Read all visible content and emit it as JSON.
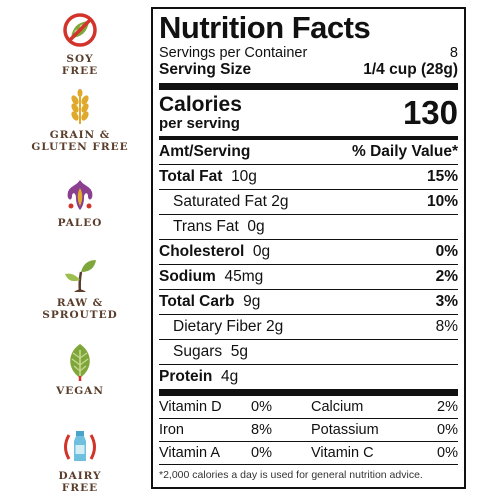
{
  "badges": [
    {
      "label_lines": [
        "SOY",
        "FREE"
      ],
      "icon": "soy-free-icon"
    },
    {
      "label_lines": [
        "GRAIN &",
        "GLUTEN FREE"
      ],
      "icon": "grain-gluten-free-icon"
    },
    {
      "label_lines": [
        "PALEO"
      ],
      "icon": "paleo-icon"
    },
    {
      "label_lines": [
        "RAW &",
        "SPROUTED"
      ],
      "icon": "sprout-icon"
    },
    {
      "label_lines": [
        "VEGAN"
      ],
      "icon": "leaf-icon"
    },
    {
      "label_lines": [
        "DAIRY",
        "FREE"
      ],
      "icon": "milk-bottle-icon"
    }
  ],
  "colors": {
    "badge_label": "#5a3d2b",
    "red": "#d2332b",
    "gold": "#e0a92c",
    "green": "#7fa63a",
    "purple": "#8a3f8f"
  },
  "facts": {
    "title": "Nutrition Facts",
    "servings_label": "Servings per Container",
    "servings_value": "8",
    "serving_size_label": "Serving Size",
    "serving_size_value": "1/4 cup (28g)",
    "calories_label": "Calories",
    "calories_sub": "per serving",
    "calories_value": "130",
    "amt_header": "Amt/Serving",
    "dv_header": "% Daily Value*",
    "nutrients": [
      {
        "name": "Total Fat",
        "amount": "10g",
        "dv": "15%"
      },
      {
        "name": "Saturated Fat",
        "amount": "2g",
        "dv": "10%"
      },
      {
        "name": "Trans Fat",
        "amount": "0g",
        "dv": ""
      },
      {
        "name": "Cholesterol",
        "amount": "0g",
        "dv": "0%"
      },
      {
        "name": "Sodium",
        "amount": "45mg",
        "dv": "2%"
      },
      {
        "name": "Total Carb",
        "amount": "9g",
        "dv": "3%"
      },
      {
        "name": "Dietary Fiber",
        "amount": "2g",
        "dv": "8%"
      },
      {
        "name": "Sugars",
        "amount": "5g",
        "dv": ""
      },
      {
        "name": "Protein",
        "amount": "4g",
        "dv": ""
      }
    ],
    "vitamins": [
      {
        "a": "Vitamin D",
        "a_val": "0%",
        "b": "Calcium",
        "b_val": "2%"
      },
      {
        "a": "Iron",
        "a_val": "8%",
        "b": "Potassium",
        "b_val": "0%"
      },
      {
        "a": "Vitamin A",
        "a_val": "0%",
        "b": "Vitamin C",
        "b_val": "0%"
      }
    ],
    "footnote": "*2,000 calories a day is used for general nutrition advice."
  }
}
